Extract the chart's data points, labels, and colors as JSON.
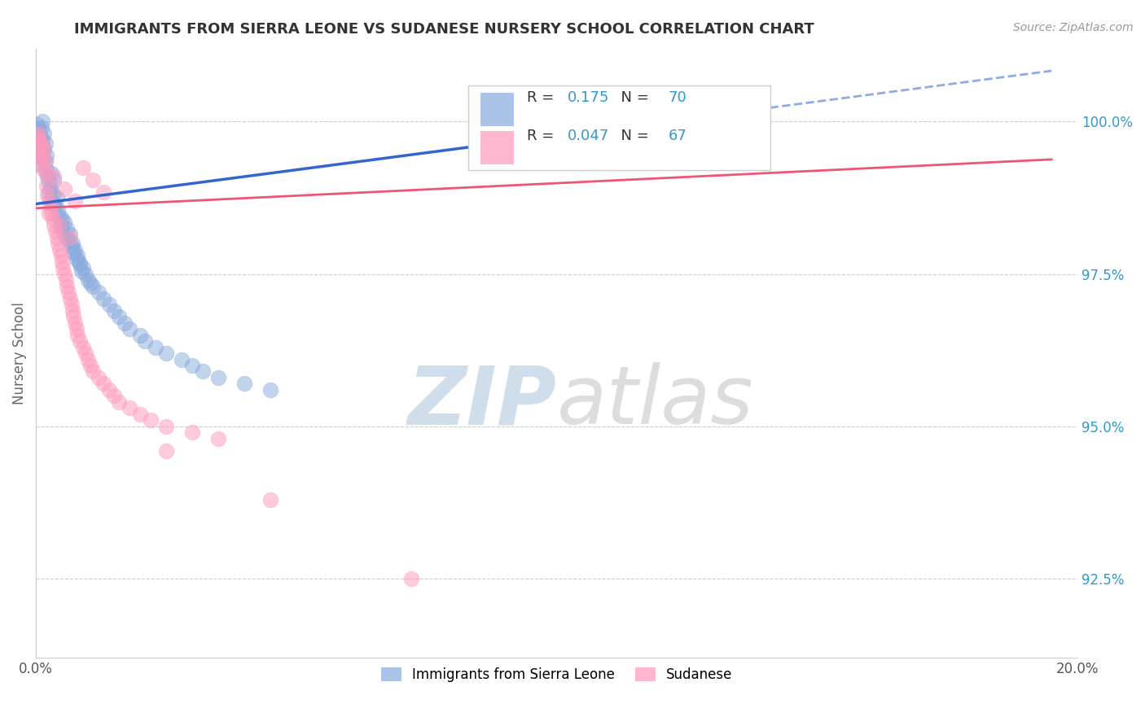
{
  "title": "IMMIGRANTS FROM SIERRA LEONE VS SUDANESE NURSERY SCHOOL CORRELATION CHART",
  "source": "Source: ZipAtlas.com",
  "xmin": 0.0,
  "xmax": 20.0,
  "ymin": 91.2,
  "ymax": 101.2,
  "ylabel": "Nursery School",
  "legend_blue_label": "Immigrants from Sierra Leone",
  "legend_pink_label": "Sudanese",
  "R_blue": 0.175,
  "N_blue": 70,
  "R_pink": 0.047,
  "N_pink": 67,
  "blue_color": "#88AADD",
  "pink_color": "#FF99BB",
  "trend_blue": "#3366CC",
  "trend_pink": "#EE5577",
  "blue_trend_x0": 0.0,
  "blue_trend_y0": 98.65,
  "blue_trend_x1": 12.5,
  "blue_trend_y1": 100.05,
  "blue_dash_x1": 12.5,
  "blue_dash_x2": 19.5,
  "pink_trend_x0": 0.0,
  "pink_trend_y0": 98.58,
  "pink_trend_x1": 19.5,
  "pink_trend_y1": 99.38,
  "blue_scatter_x": [
    0.05,
    0.05,
    0.05,
    0.08,
    0.08,
    0.1,
    0.1,
    0.12,
    0.12,
    0.15,
    0.15,
    0.18,
    0.18,
    0.2,
    0.2,
    0.22,
    0.25,
    0.25,
    0.28,
    0.3,
    0.3,
    0.32,
    0.35,
    0.35,
    0.38,
    0.4,
    0.42,
    0.45,
    0.48,
    0.5,
    0.52,
    0.55,
    0.58,
    0.6,
    0.62,
    0.65,
    0.68,
    0.7,
    0.72,
    0.75,
    0.78,
    0.8,
    0.82,
    0.85,
    0.88,
    0.9,
    0.95,
    1.0,
    1.05,
    1.1,
    1.2,
    1.3,
    1.4,
    1.5,
    1.6,
    1.7,
    1.8,
    2.0,
    2.1,
    2.3,
    2.5,
    2.8,
    3.0,
    3.2,
    3.5,
    4.0,
    4.5,
    0.03,
    0.04,
    0.07
  ],
  "blue_scatter_y": [
    99.85,
    99.6,
    99.3,
    99.75,
    99.5,
    99.9,
    99.4,
    100.0,
    99.7,
    99.8,
    99.55,
    99.65,
    99.35,
    99.45,
    99.2,
    99.1,
    99.0,
    98.85,
    98.9,
    99.15,
    98.7,
    98.8,
    99.05,
    98.65,
    98.6,
    98.75,
    98.55,
    98.45,
    98.3,
    98.4,
    98.2,
    98.35,
    98.1,
    98.25,
    98.05,
    98.15,
    97.95,
    98.0,
    97.85,
    97.9,
    97.75,
    97.8,
    97.7,
    97.65,
    97.55,
    97.6,
    97.5,
    97.4,
    97.35,
    97.3,
    97.2,
    97.1,
    97.0,
    96.9,
    96.8,
    96.7,
    96.6,
    96.5,
    96.4,
    96.3,
    96.2,
    96.1,
    96.0,
    95.9,
    95.8,
    95.7,
    95.6,
    99.95,
    99.88,
    99.72
  ],
  "pink_scatter_x": [
    0.05,
    0.05,
    0.08,
    0.08,
    0.1,
    0.12,
    0.15,
    0.15,
    0.18,
    0.2,
    0.2,
    0.22,
    0.25,
    0.28,
    0.3,
    0.32,
    0.35,
    0.38,
    0.4,
    0.42,
    0.45,
    0.48,
    0.5,
    0.52,
    0.55,
    0.58,
    0.6,
    0.62,
    0.65,
    0.68,
    0.7,
    0.72,
    0.75,
    0.78,
    0.8,
    0.85,
    0.9,
    0.95,
    1.0,
    1.05,
    1.1,
    1.2,
    1.3,
    1.4,
    1.5,
    1.6,
    1.8,
    2.0,
    2.2,
    2.5,
    3.0,
    3.5,
    0.03,
    0.04,
    0.07,
    0.9,
    1.1,
    1.3,
    0.35,
    0.55,
    0.75,
    2.5,
    4.5,
    0.25,
    0.45,
    0.65,
    7.2
  ],
  "pink_scatter_y": [
    99.8,
    99.5,
    99.7,
    99.3,
    99.6,
    99.4,
    99.55,
    99.2,
    99.35,
    99.15,
    98.95,
    98.8,
    98.7,
    98.6,
    98.5,
    98.4,
    98.3,
    98.2,
    98.1,
    98.0,
    97.9,
    97.8,
    97.7,
    97.6,
    97.5,
    97.4,
    97.3,
    97.2,
    97.1,
    97.0,
    96.9,
    96.8,
    96.7,
    96.6,
    96.5,
    96.4,
    96.3,
    96.2,
    96.1,
    96.0,
    95.9,
    95.8,
    95.7,
    95.6,
    95.5,
    95.4,
    95.3,
    95.2,
    95.1,
    95.0,
    94.9,
    94.8,
    99.75,
    99.65,
    99.45,
    99.25,
    99.05,
    98.85,
    99.1,
    98.9,
    98.7,
    94.6,
    93.8,
    98.5,
    98.3,
    98.1,
    92.5
  ]
}
